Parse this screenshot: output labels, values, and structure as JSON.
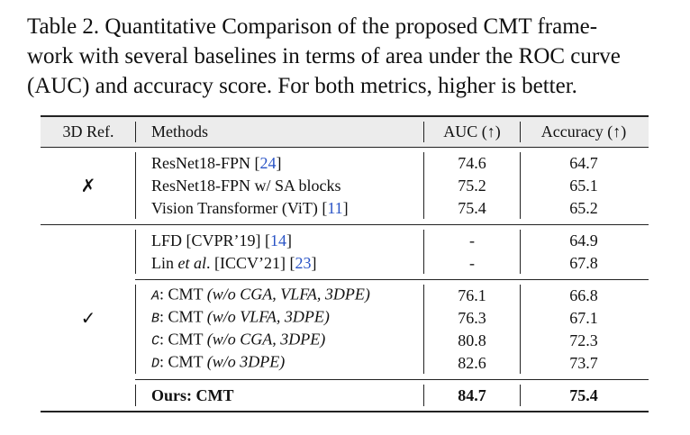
{
  "caption": [
    "Table 2.  Quantitative Comparison of the proposed CMT frame-",
    "work with several baselines in terms of area under the ROC curve",
    "(AUC) and accuracy score. For both metrics, higher is better."
  ],
  "table": {
    "header": [
      "3D Ref.",
      "Methods",
      "AUC (↑)",
      "Accuracy (↑)"
    ],
    "groups": [
      {
        "ref": "✗",
        "sections": [
          [
            {
              "method": [
                {
                  "t": "ResNet18-FPN ["
                },
                {
                  "t": "24",
                  "s": "cite"
                },
                {
                  "t": "]"
                }
              ],
              "auc": 74.6,
              "accuracy": 64.7
            },
            {
              "method": [
                {
                  "t": "ResNet18-FPN w/ SA blocks"
                }
              ],
              "auc": 75.2,
              "accuracy": 65.1
            },
            {
              "method": [
                {
                  "t": "Vision Transformer (ViT)  ["
                },
                {
                  "t": "11",
                  "s": "cite"
                },
                {
                  "t": "]"
                }
              ],
              "auc": 75.4,
              "accuracy": 65.2
            }
          ]
        ]
      },
      {
        "ref": "✓",
        "sections": [
          [
            {
              "method": [
                {
                  "t": "LFD [CVPR’19] ["
                },
                {
                  "t": "14",
                  "s": "cite"
                },
                {
                  "t": "]"
                }
              ],
              "auc": "-",
              "accuracy": 64.9
            },
            {
              "method": [
                {
                  "t": "Lin "
                },
                {
                  "t": "et al",
                  "s": "italic"
                },
                {
                  "t": ". [ICCV’21] ["
                },
                {
                  "t": "23",
                  "s": "cite"
                },
                {
                  "t": "]"
                }
              ],
              "auc": "-",
              "accuracy": 67.8
            }
          ],
          [
            {
              "method": [
                {
                  "t": "A",
                  "s": "mono"
                },
                {
                  "t": ": CMT "
                },
                {
                  "t": "(w/o CGA, VLFA, 3DPE)",
                  "s": "italic"
                }
              ],
              "auc": 76.1,
              "accuracy": 66.8
            },
            {
              "method": [
                {
                  "t": "B",
                  "s": "mono"
                },
                {
                  "t": ": CMT "
                },
                {
                  "t": "(w/o VLFA, 3DPE)",
                  "s": "italic"
                }
              ],
              "auc": 76.3,
              "accuracy": 67.1
            },
            {
              "method": [
                {
                  "t": "C",
                  "s": "mono"
                },
                {
                  "t": ": CMT "
                },
                {
                  "t": "(w/o CGA, 3DPE)",
                  "s": "italic"
                }
              ],
              "auc": 80.8,
              "accuracy": 72.3
            },
            {
              "method": [
                {
                  "t": "D",
                  "s": "mono"
                },
                {
                  "t": ": CMT "
                },
                {
                  "t": "(w/o 3DPE)",
                  "s": "italic"
                }
              ],
              "auc": 82.6,
              "accuracy": 73.7
            }
          ],
          [
            {
              "method": [
                {
                  "t": "Ours: CMT"
                }
              ],
              "auc": 84.7,
              "accuracy": 75.4,
              "bold": true
            }
          ]
        ]
      }
    ]
  }
}
